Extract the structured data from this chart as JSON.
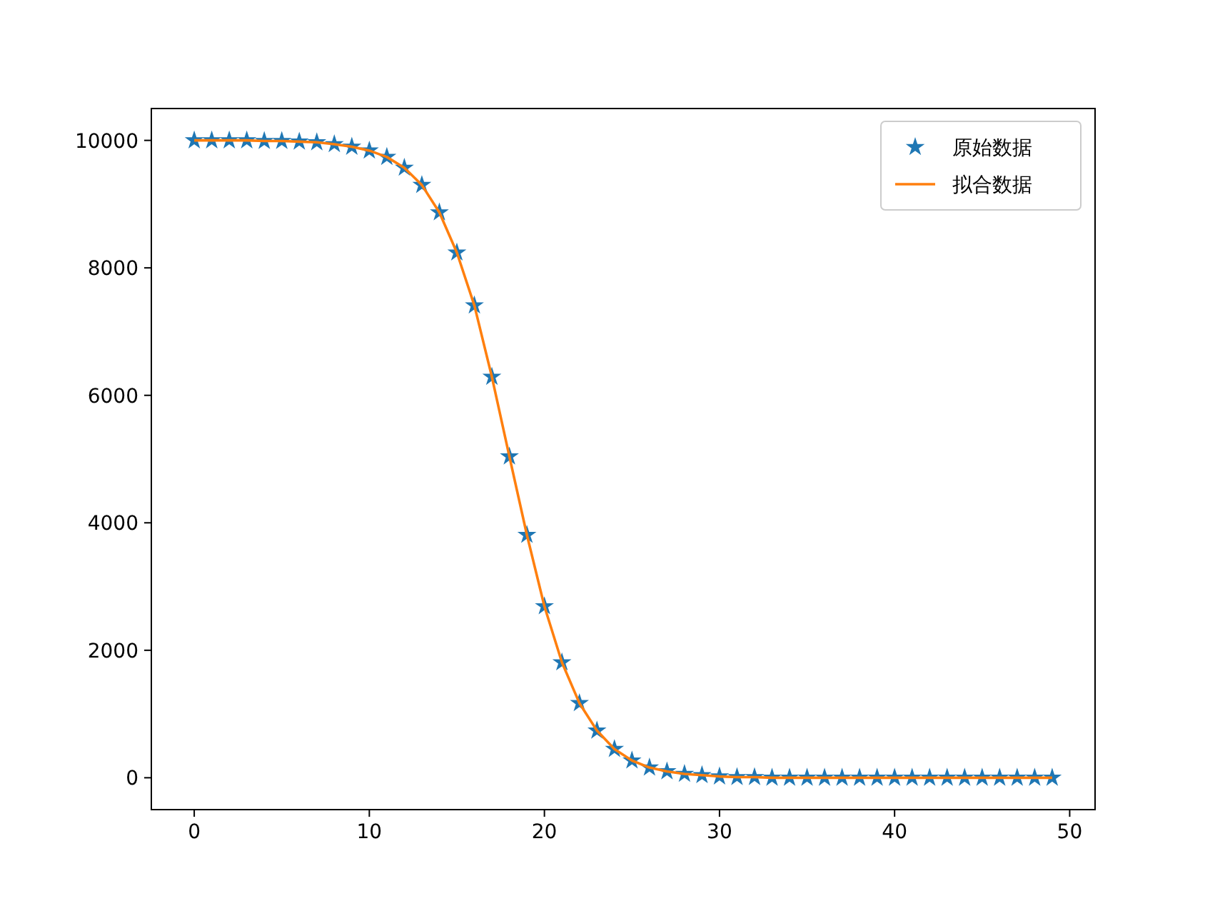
{
  "chart_data": {
    "type": "scatter",
    "xlim": [
      -2.45,
      51.45
    ],
    "ylim": [
      -500,
      10500
    ],
    "xticks": [
      0,
      10,
      20,
      30,
      40,
      50
    ],
    "yticks": [
      0,
      2000,
      4000,
      6000,
      8000,
      10000
    ],
    "grid": false,
    "legend": "top right",
    "series": [
      {
        "name": "原始数据",
        "marker": "star",
        "color": "#1f77b4",
        "x": [
          0,
          1,
          2,
          3,
          4,
          5,
          6,
          7,
          8,
          9,
          10,
          11,
          12,
          13,
          14,
          15,
          16,
          17,
          18,
          19,
          20,
          21,
          22,
          23,
          24,
          25,
          26,
          27,
          28,
          29,
          30,
          31,
          32,
          33,
          34,
          35,
          36,
          37,
          38,
          39,
          40,
          41,
          42,
          43,
          44,
          45,
          46,
          47,
          48,
          49
        ],
        "values": [
          10000,
          10000,
          10000,
          10000,
          9990,
          9990,
          9980,
          9970,
          9940,
          9900,
          9840,
          9740,
          9570,
          9300,
          8870,
          8240,
          7410,
          6290,
          5040,
          3810,
          2690,
          1810,
          1170,
          740,
          450,
          270,
          160,
          100,
          60,
          40,
          20,
          10,
          10,
          0,
          0,
          0,
          0,
          0,
          0,
          0,
          0,
          0,
          0,
          0,
          0,
          0,
          0,
          0,
          0,
          0
        ]
      },
      {
        "name": "拟合数据",
        "type": "line",
        "marker": "none",
        "color": "#ff7f0e",
        "x": [
          0,
          1,
          2,
          3,
          4,
          5,
          6,
          7,
          8,
          9,
          10,
          11,
          12,
          13,
          14,
          15,
          16,
          17,
          18,
          19,
          20,
          21,
          22,
          23,
          24,
          25,
          26,
          27,
          28,
          29,
          30,
          31,
          32,
          33,
          34,
          35,
          36,
          37,
          38,
          39,
          40,
          41,
          42,
          43,
          44,
          45,
          46,
          47,
          48,
          49
        ],
        "values": [
          10000,
          10000,
          10000,
          10000,
          9990,
          9990,
          9980,
          9970,
          9940,
          9900,
          9840,
          9740,
          9570,
          9300,
          8870,
          8240,
          7410,
          6290,
          5040,
          3810,
          2690,
          1810,
          1170,
          740,
          450,
          270,
          160,
          100,
          60,
          40,
          20,
          10,
          10,
          0,
          0,
          0,
          0,
          0,
          0,
          0,
          0,
          0,
          0,
          0,
          0,
          0,
          0,
          0,
          0,
          0
        ]
      }
    ]
  }
}
